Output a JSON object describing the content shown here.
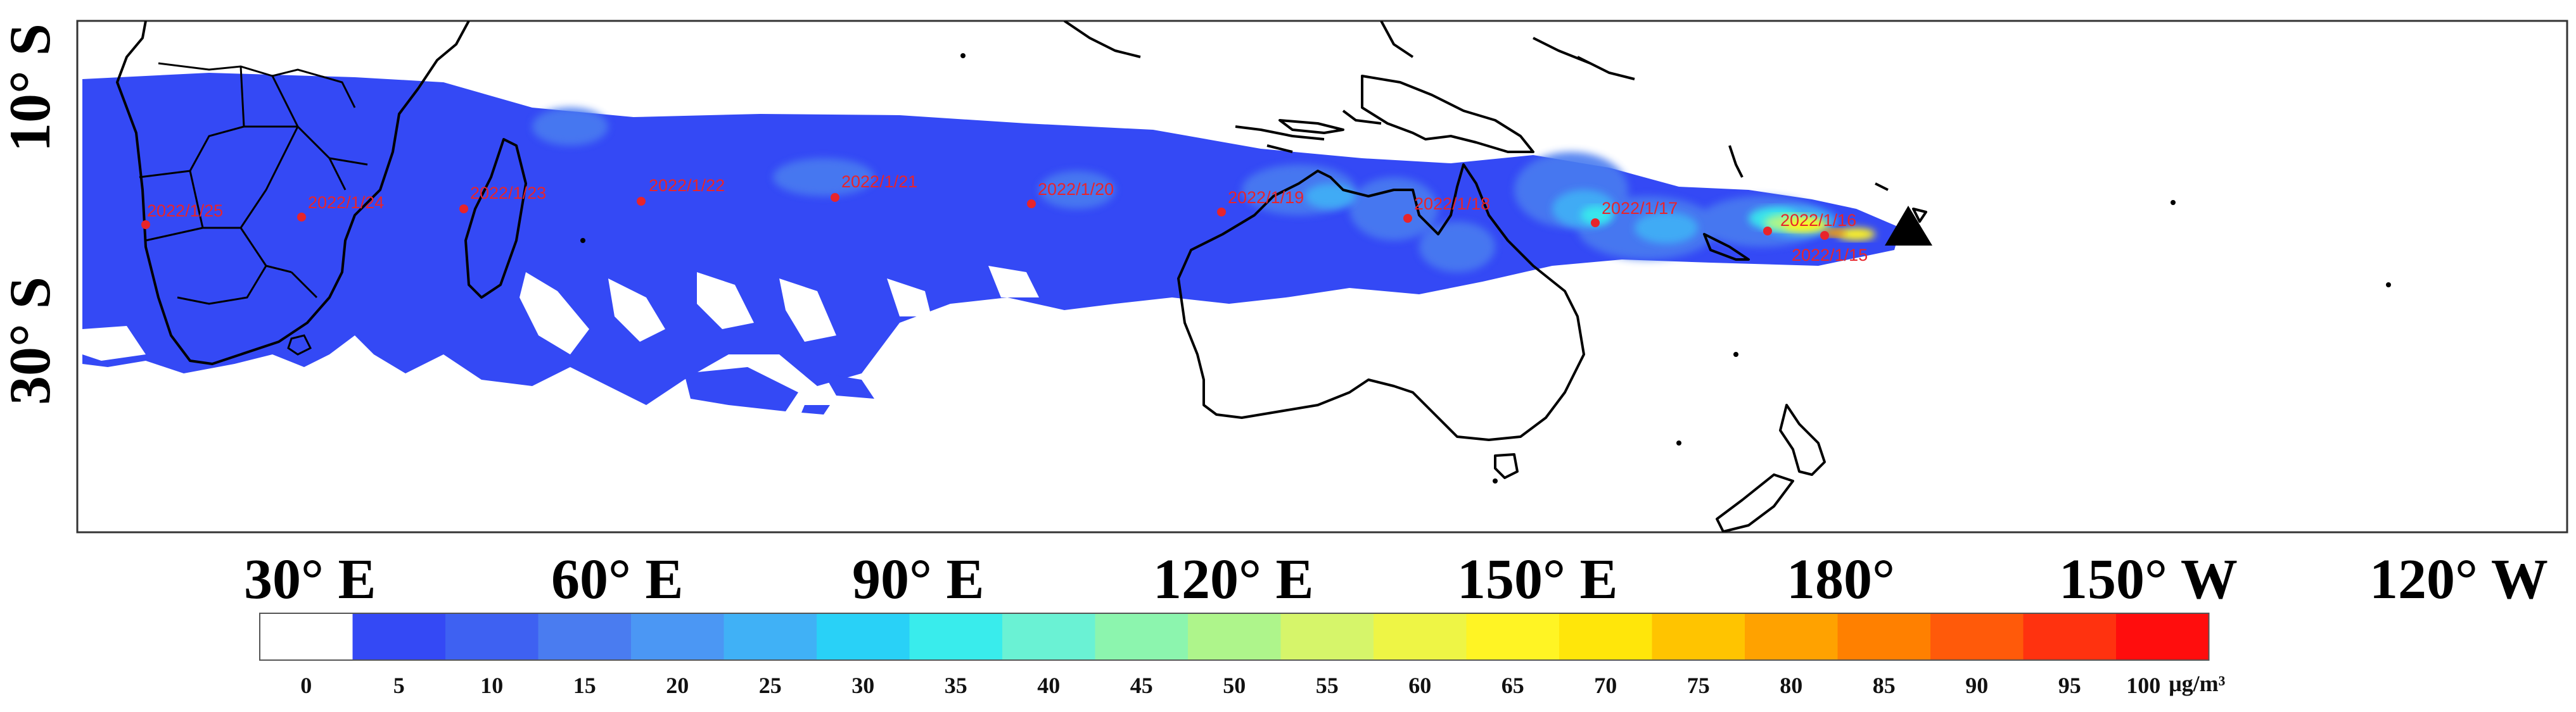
{
  "map": {
    "lat_labels": [
      "10° S",
      "30° S"
    ],
    "lon_labels": [
      "30° E",
      "60° E",
      "90° E",
      "120° E",
      "150° E",
      "180°",
      "150° W",
      "120° W"
    ],
    "source_marker": "triangle-marker",
    "trajectory_dates": [
      "2022/1/25",
      "2022/1/24",
      "2022/1/23",
      "2022/1/22",
      "2022/1/21",
      "2022/1/20",
      "2022/1/19",
      "2022/1/18",
      "2022/1/17",
      "2022/1/16",
      "2022/1/15"
    ]
  },
  "colorbar": {
    "labels": [
      "0",
      "5",
      "10",
      "15",
      "20",
      "25",
      "30",
      "35",
      "40",
      "45",
      "50",
      "55",
      "60",
      "65",
      "70",
      "75",
      "80",
      "85",
      "90",
      "95",
      "100"
    ],
    "unit": "μg/m³",
    "colors": [
      "#ffffff",
      "#3449f5",
      "#3e61f2",
      "#4a7cf0",
      "#4b97f4",
      "#40b1f6",
      "#29d1f7",
      "#39ecec",
      "#6af2d4",
      "#8cf5ae",
      "#aef58b",
      "#d6f56a",
      "#eef545",
      "#fff424",
      "#ffe60a",
      "#ffc400",
      "#ffa200",
      "#ff8000",
      "#ff5a0a",
      "#ff320f",
      "#ff0d0d"
    ]
  },
  "colors": {
    "plume_base": "#3449f5",
    "plume_mid": "#4a7cf0",
    "trajectory_point": "#e8242b",
    "coastline": "#000000"
  }
}
